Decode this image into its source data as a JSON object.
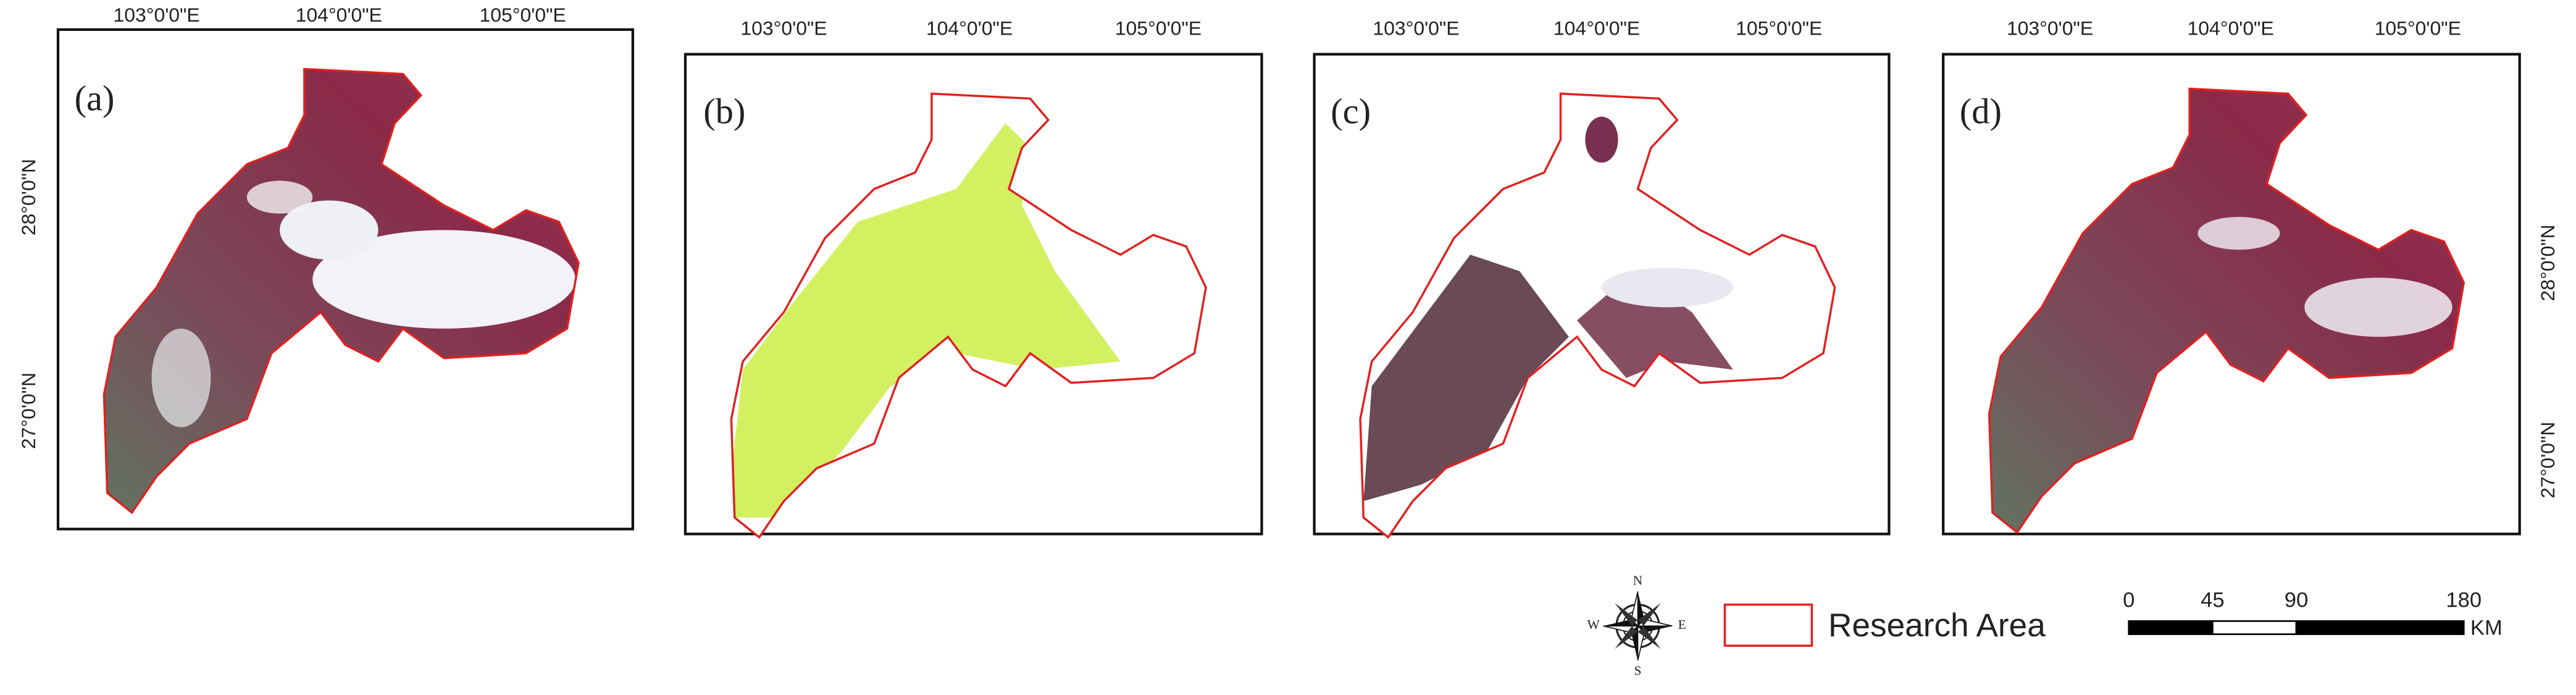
{
  "panels": [
    {
      "label": "(a)",
      "top_labels": [
        "103°0'0\"E",
        "104°0'0\"E",
        "105°0'0\"E"
      ],
      "left_labels": [
        "28°0'0\"N",
        "27°0'0\"N"
      ]
    },
    {
      "label": "(b)",
      "top_labels": [
        "103°0'0\"E",
        "104°0'0\"E",
        "105°0'0\"E"
      ]
    },
    {
      "label": "(c)",
      "top_labels": [
        "103°0'0\"E",
        "104°0'0\"E",
        "105°0'0\"E"
      ]
    },
    {
      "label": "(d)",
      "top_labels": [
        "103°0'0\"E",
        "104°0'0\"E",
        "105°0'0\"E"
      ],
      "right_labels": [
        "28°0'0\"N",
        "27°0'0\"N"
      ]
    }
  ],
  "compass": {
    "n": "N",
    "s": "S",
    "e": "E",
    "w": "W"
  },
  "legend": {
    "label": "Research Area"
  },
  "scale_bar": {
    "ticks": [
      0,
      45,
      90,
      180
    ],
    "unit": "KM"
  }
}
